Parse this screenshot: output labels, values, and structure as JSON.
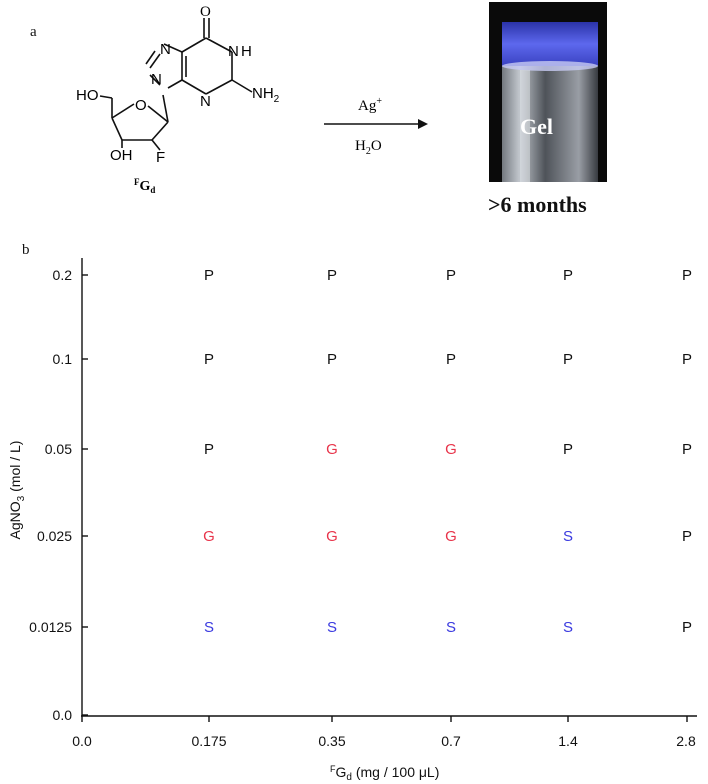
{
  "panel_a": {
    "label": "a",
    "molecule": {
      "atoms": {
        "O_carbonyl": "O",
        "N1H": "N",
        "H1": "H",
        "N7": "N",
        "N9": "N",
        "N3": "N",
        "NH2": "NH",
        "NH2_sub": "2",
        "HO": "HO",
        "ring_O": "O",
        "OH": "OH",
        "F": "F"
      },
      "name_super": "F",
      "name_main": "G",
      "name_sub": "d"
    },
    "reaction": {
      "reagent_main": "Ag",
      "reagent_super": "+",
      "solvent_main": "H",
      "solvent_sub": "2",
      "solvent_tail": "O"
    },
    "photo": {
      "gel_label": "Gel",
      "caption": ">6 months",
      "colors": {
        "background": "#0a0a0a",
        "gel_band": "#4a55d8",
        "vial": "#c9ced6"
      }
    }
  },
  "panel_b": {
    "label": "b"
  },
  "chart_data": {
    "type": "table",
    "title": "",
    "xlabel_super": "F",
    "xlabel_main": "G",
    "xlabel_sub": "d",
    "xlabel_tail": " (mg / 100 μL)",
    "ylabel_main": "AgNO",
    "ylabel_sub": "3",
    "ylabel_tail": " (mol / L)",
    "x_categories": [
      "0.0",
      "0.175",
      "0.35",
      "0.7",
      "1.4",
      "2.8"
    ],
    "y_categories": [
      "0.0",
      "0.0125",
      "0.025",
      "0.05",
      "0.1",
      "0.2"
    ],
    "grid": false,
    "colors": {
      "P": "#111111",
      "G": "#e8344a",
      "S": "#3a3ae0"
    },
    "points": [
      {
        "x": "0.175",
        "y": "0.2",
        "state": "P"
      },
      {
        "x": "0.35",
        "y": "0.2",
        "state": "P"
      },
      {
        "x": "0.7",
        "y": "0.2",
        "state": "P"
      },
      {
        "x": "1.4",
        "y": "0.2",
        "state": "P"
      },
      {
        "x": "2.8",
        "y": "0.2",
        "state": "P"
      },
      {
        "x": "0.175",
        "y": "0.1",
        "state": "P"
      },
      {
        "x": "0.35",
        "y": "0.1",
        "state": "P"
      },
      {
        "x": "0.7",
        "y": "0.1",
        "state": "P"
      },
      {
        "x": "1.4",
        "y": "0.1",
        "state": "P"
      },
      {
        "x": "2.8",
        "y": "0.1",
        "state": "P"
      },
      {
        "x": "0.175",
        "y": "0.05",
        "state": "P"
      },
      {
        "x": "0.35",
        "y": "0.05",
        "state": "G"
      },
      {
        "x": "0.7",
        "y": "0.05",
        "state": "G"
      },
      {
        "x": "1.4",
        "y": "0.05",
        "state": "P"
      },
      {
        "x": "2.8",
        "y": "0.05",
        "state": "P"
      },
      {
        "x": "0.175",
        "y": "0.025",
        "state": "G"
      },
      {
        "x": "0.35",
        "y": "0.025",
        "state": "G"
      },
      {
        "x": "0.7",
        "y": "0.025",
        "state": "G"
      },
      {
        "x": "1.4",
        "y": "0.025",
        "state": "S"
      },
      {
        "x": "2.8",
        "y": "0.025",
        "state": "P"
      },
      {
        "x": "0.175",
        "y": "0.0125",
        "state": "S"
      },
      {
        "x": "0.35",
        "y": "0.0125",
        "state": "S"
      },
      {
        "x": "0.7",
        "y": "0.0125",
        "state": "S"
      },
      {
        "x": "1.4",
        "y": "0.0125",
        "state": "S"
      },
      {
        "x": "2.8",
        "y": "0.0125",
        "state": "P"
      }
    ]
  }
}
